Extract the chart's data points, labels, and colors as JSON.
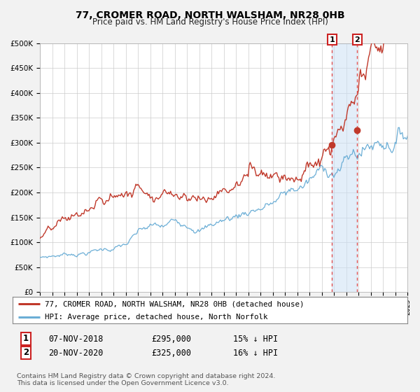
{
  "title": "77, CROMER ROAD, NORTH WALSHAM, NR28 0HB",
  "subtitle": "Price paid vs. HM Land Registry's House Price Index (HPI)",
  "ylim": [
    0,
    500000
  ],
  "yticks": [
    0,
    50000,
    100000,
    150000,
    200000,
    250000,
    300000,
    350000,
    400000,
    450000,
    500000
  ],
  "ytick_labels": [
    "£0",
    "£50K",
    "£100K",
    "£150K",
    "£200K",
    "£250K",
    "£300K",
    "£350K",
    "£400K",
    "£450K",
    "£500K"
  ],
  "hpi_color": "#6baed6",
  "price_color": "#c0392b",
  "marker_color": "#c0392b",
  "vline_color": "#e05050",
  "shade_color": "#cce0f5",
  "sale1_year": 2018.85,
  "sale1_price": 295000,
  "sale2_year": 2020.9,
  "sale2_price": 325000,
  "legend_line1": "77, CROMER ROAD, NORTH WALSHAM, NR28 0HB (detached house)",
  "legend_line2": "HPI: Average price, detached house, North Norfolk",
  "table_row1": [
    "1",
    "07-NOV-2018",
    "£295,000",
    "15% ↓ HPI"
  ],
  "table_row2": [
    "2",
    "20-NOV-2020",
    "£325,000",
    "16% ↓ HPI"
  ],
  "footnote1": "Contains HM Land Registry data © Crown copyright and database right 2024.",
  "footnote2": "This data is licensed under the Open Government Licence v3.0.",
  "background_color": "#f2f2f2",
  "plot_bg_color": "#ffffff"
}
